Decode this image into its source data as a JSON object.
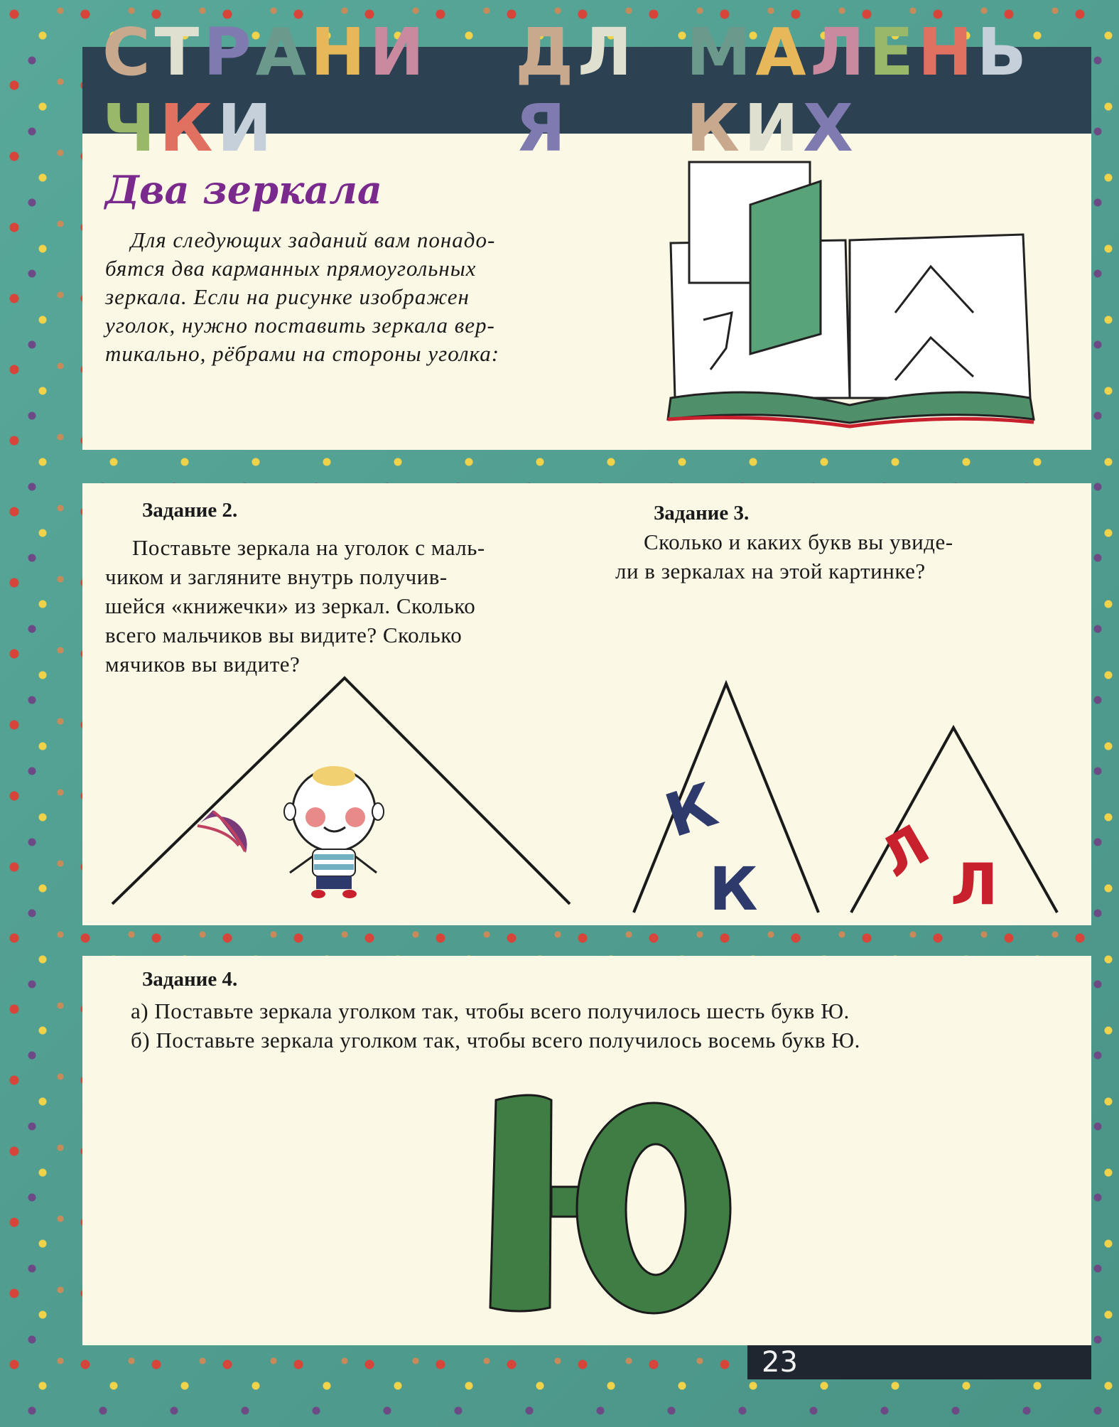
{
  "header": {
    "words": [
      "СТРАНИЧКИ",
      "ДЛЯ",
      "МАЛЕНЬКИХ"
    ],
    "letter_colors": [
      "#c9a98e",
      "#e0e0d0",
      "#7f7bb0",
      "#6b9a8c",
      "#e6b85a",
      "#c98aa0",
      "#9ab86a",
      "#e07060",
      "#c6d0da"
    ]
  },
  "section_title": "Два зеркала",
  "intro_lines": [
    "Для следующих заданий вам понадо-",
    "бятся два карманных прямоугольных",
    "зеркала. Если на рисунке изображен",
    "уголок, нужно поставить зеркала вер-",
    "тикально, рёбрами на стороны уголка:"
  ],
  "task2": {
    "title": "Задание 2.",
    "lines": [
      "Поставьте зеркала на уголок с маль-",
      "чиком и загляните внутрь получив-",
      "шейся «книжечки» из зеркал. Сколько",
      "всего мальчиков вы видите? Сколько",
      "мячиков вы видите?"
    ]
  },
  "task3": {
    "title": "Задание 3.",
    "lines": [
      "Сколько и каких букв вы увиде-",
      "ли в зеркалах на этой картинке?"
    ],
    "letters_left": [
      "К",
      "К"
    ],
    "letters_right": [
      "Л",
      "Л"
    ]
  },
  "task4": {
    "title": "Задание 4.",
    "lines": [
      "а) Поставьте зеркала уголком так, чтобы всего получилось шесть букв Ю.",
      "б) Поставьте зеркала уголком так, чтобы всего получилось восемь букв Ю."
    ],
    "big_letter": "Ю"
  },
  "page_number": "23",
  "colors": {
    "green": "#3f7d45",
    "navy": "#2d3a6b",
    "red": "#c8202d",
    "purple": "#7a2a8c",
    "panel": "#fbf8e6"
  }
}
